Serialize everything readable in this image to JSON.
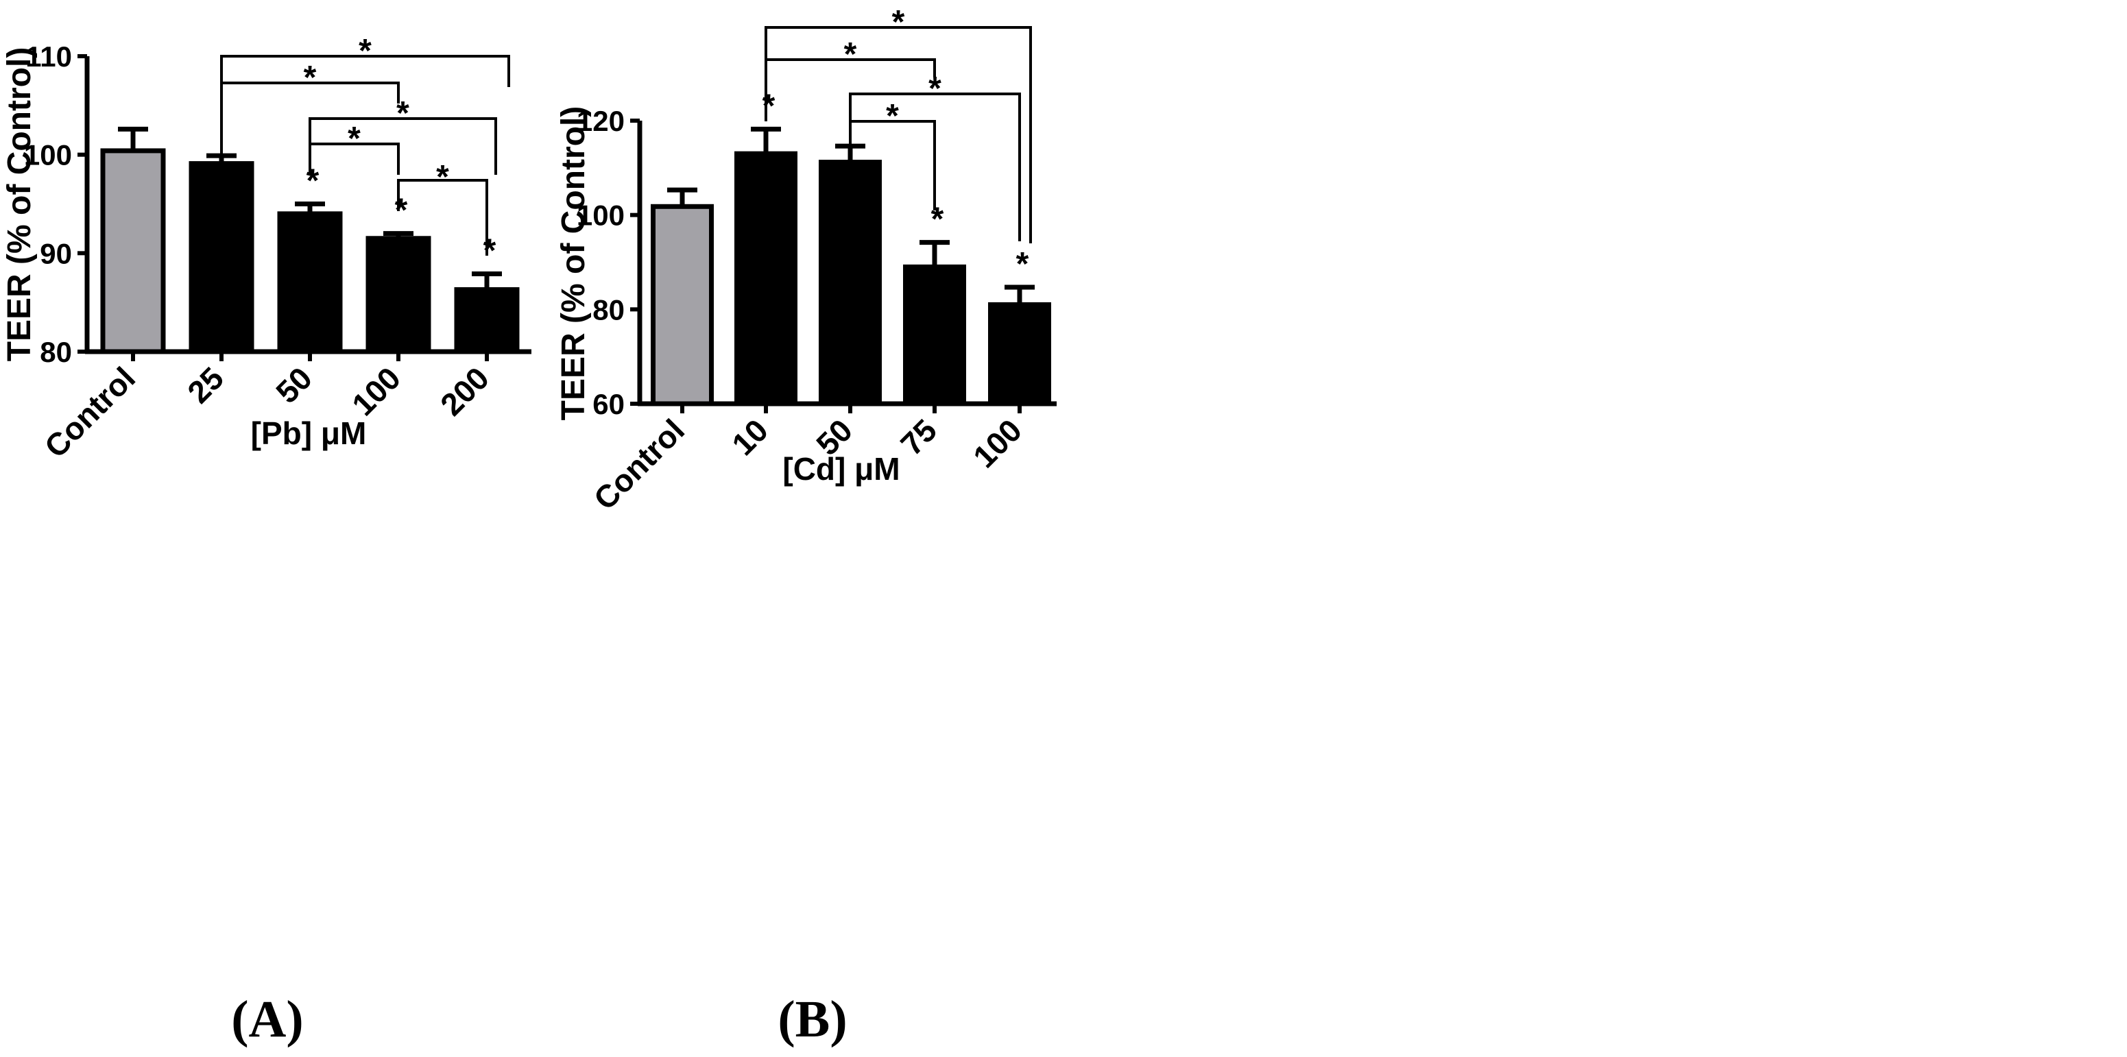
{
  "chart_data": [
    {
      "type": "bar",
      "panel_label": "(A)",
      "xlabel": "[Pb] μM",
      "ylabel": "TEER (% of Control)",
      "ylim": [
        80,
        110
      ],
      "yticks": [
        80,
        90,
        100,
        110
      ],
      "categories": [
        "Control",
        "25",
        "50",
        "100",
        "200"
      ],
      "values": [
        100.4,
        99.1,
        94.0,
        91.5,
        86.3
      ],
      "errors": [
        2.2,
        0.8,
        1.0,
        0.5,
        1.6
      ],
      "bar_colors": [
        "#a3a2a7",
        "#000000",
        "#000000",
        "#000000",
        "#000000"
      ],
      "bar_stars": [
        "",
        "",
        "*",
        "*",
        "*"
      ],
      "comparisons": [
        {
          "from": 1,
          "to": 4,
          "label": "*"
        },
        {
          "from": 1,
          "to": 3,
          "label": "*"
        },
        {
          "from": 2,
          "to": 4,
          "label": "*"
        },
        {
          "from": 2,
          "to": 3,
          "label": "*"
        },
        {
          "from": 3,
          "to": 4,
          "label": "*"
        }
      ]
    },
    {
      "type": "bar",
      "panel_label": "(B)",
      "xlabel": "[Cd] μM",
      "ylabel": "TEER (% of Control)",
      "ylim": [
        60,
        120
      ],
      "yticks": [
        60,
        80,
        100,
        120
      ],
      "categories": [
        "Control",
        "10",
        "50",
        "75",
        "100"
      ],
      "values": [
        101.8,
        113.0,
        111.2,
        89.0,
        81.0
      ],
      "errors": [
        3.5,
        5.2,
        3.4,
        5.2,
        3.7
      ],
      "bar_colors": [
        "#a3a2a7",
        "#000000",
        "#000000",
        "#000000",
        "#000000"
      ],
      "bar_stars": [
        "",
        "*",
        "",
        "*",
        "*"
      ],
      "comparisons": [
        {
          "from": 1,
          "to": 4,
          "label": "*"
        },
        {
          "from": 1,
          "to": 3,
          "label": "*"
        },
        {
          "from": 2,
          "to": 4,
          "label": "*"
        },
        {
          "from": 2,
          "to": 3,
          "label": "*"
        }
      ]
    }
  ]
}
